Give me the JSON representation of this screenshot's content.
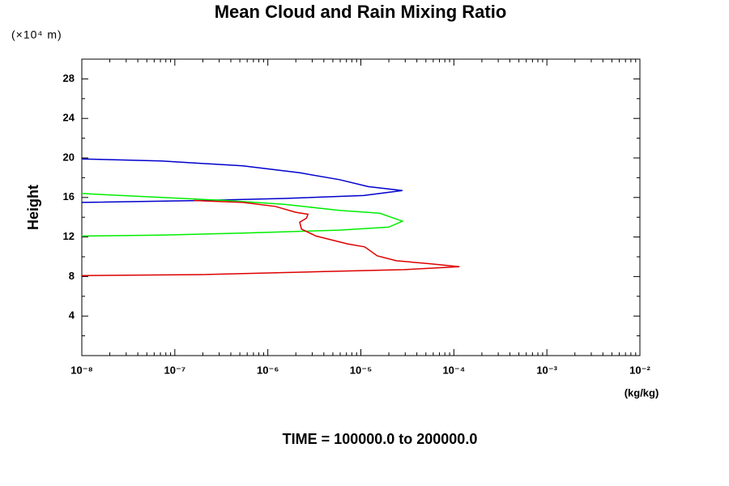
{
  "chart_data": {
    "type": "line",
    "title": "Mean Cloud and Rain Mixing Ratio",
    "y_label": "Height",
    "y_unit": "(×10⁴ m)",
    "x_unit": "(kg/kg)",
    "footer": "TIME = 100000.0 to 200000.0",
    "x_scale": "log",
    "xlim": [
      1e-08,
      0.01
    ],
    "xticks": [
      {
        "value": 1e-08,
        "label": "10⁻⁸"
      },
      {
        "value": 1e-07,
        "label": "10⁻⁷"
      },
      {
        "value": 1e-06,
        "label": "10⁻⁶"
      },
      {
        "value": 1e-05,
        "label": "10⁻⁵"
      },
      {
        "value": 0.0001,
        "label": "10⁻⁴"
      },
      {
        "value": 0.001,
        "label": "10⁻³"
      },
      {
        "value": 0.01,
        "label": "10⁻²"
      }
    ],
    "ylim": [
      0,
      30
    ],
    "yticks": [
      4,
      8,
      12,
      16,
      20,
      24,
      28
    ],
    "series": [
      {
        "color": "#0000cc",
        "x": [
          1e-08,
          7.2e-08,
          5.4e-07,
          2.2e-06,
          5.9e-06,
          1.2e-05,
          2.8e-05,
          1.07e-05,
          1.5e-06,
          2e-07,
          1e-08
        ],
        "y": [
          19.9,
          19.7,
          19.2,
          18.5,
          17.8,
          17.1,
          16.7,
          16.2,
          15.9,
          15.7,
          15.5
        ]
      },
      {
        "color": "#00ee00",
        "x": [
          1e-08,
          7.2e-08,
          3.6e-07,
          1.5e-06,
          5.9e-06,
          1.6e-05,
          2.8e-05,
          2e-05,
          5.9e-06,
          5.4e-07,
          7.2e-08,
          1e-08
        ],
        "y": [
          16.4,
          16.0,
          15.7,
          15.3,
          14.7,
          14.4,
          13.6,
          13.0,
          12.7,
          12.4,
          12.2,
          12.1
        ]
      },
      {
        "color": "#dd0000",
        "x": [
          1.6e-07,
          5.4e-07,
          1.2e-06,
          2e-06,
          2.7e-06,
          2.6e-06,
          2.2e-06,
          2.3e-06,
          3.3e-06,
          7.2e-06,
          1.1e-05,
          1.5e-05,
          2.4e-05,
          5.4e-05,
          0.000115,
          2.9e-05,
          4e-06,
          2e-07,
          1e-08
        ],
        "y": [
          15.7,
          15.5,
          15.1,
          14.5,
          14.3,
          13.9,
          13.5,
          12.8,
          12.1,
          11.3,
          11.0,
          10.1,
          9.6,
          9.3,
          9.0,
          8.7,
          8.5,
          8.2,
          8.1
        ]
      }
    ]
  }
}
